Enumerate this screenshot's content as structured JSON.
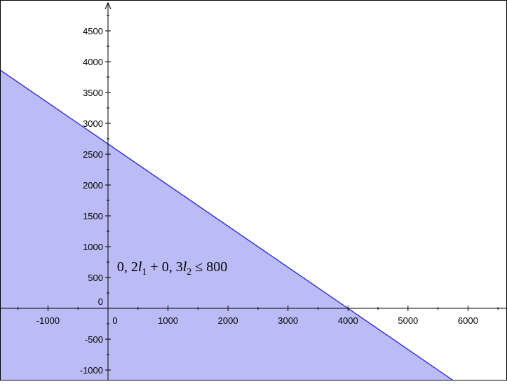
{
  "chart_data": {
    "type": "area",
    "xlim": [
      -1800,
      6650
    ],
    "ylim": [
      -1170,
      5000
    ],
    "x_ticks": [
      -1000,
      0,
      1000,
      2000,
      3000,
      4000,
      5000,
      6000
    ],
    "x_tick_labels": [
      "-1000",
      "0",
      "1000",
      "2000",
      "3000",
      "4000",
      "5000",
      "6000"
    ],
    "y_ticks": [
      -1000,
      -500,
      0,
      500,
      1000,
      1500,
      2000,
      2500,
      3000,
      3500,
      4000,
      4500
    ],
    "y_tick_labels": [
      "-1000",
      "-500",
      "0",
      "500",
      "1000",
      "1500",
      "2000",
      "2500",
      "3000",
      "3500",
      "4000",
      "4500"
    ],
    "grid": false,
    "constraint": {
      "line_points": [
        [
          -1800,
          3866.67
        ],
        [
          6000,
          -1333.33
        ]
      ],
      "x_intercept": 4000,
      "y_intercept": 2666.67,
      "shaded_side": "below"
    },
    "annotation": {
      "text": "0, 2l1 + 0, 3l2 ≤ 800",
      "parts": {
        "coef1": "0, 2",
        "var1": "l",
        "sub1": "1",
        "plus": " + ",
        "coef2": "0, 3",
        "var2": "l",
        "sub2": "2",
        "rel": " ≤ 800"
      },
      "anchor": [
        150,
        600
      ]
    },
    "colors": {
      "fill": "#bbbbf5",
      "line": "#2323d6",
      "axis": "#000000"
    }
  }
}
